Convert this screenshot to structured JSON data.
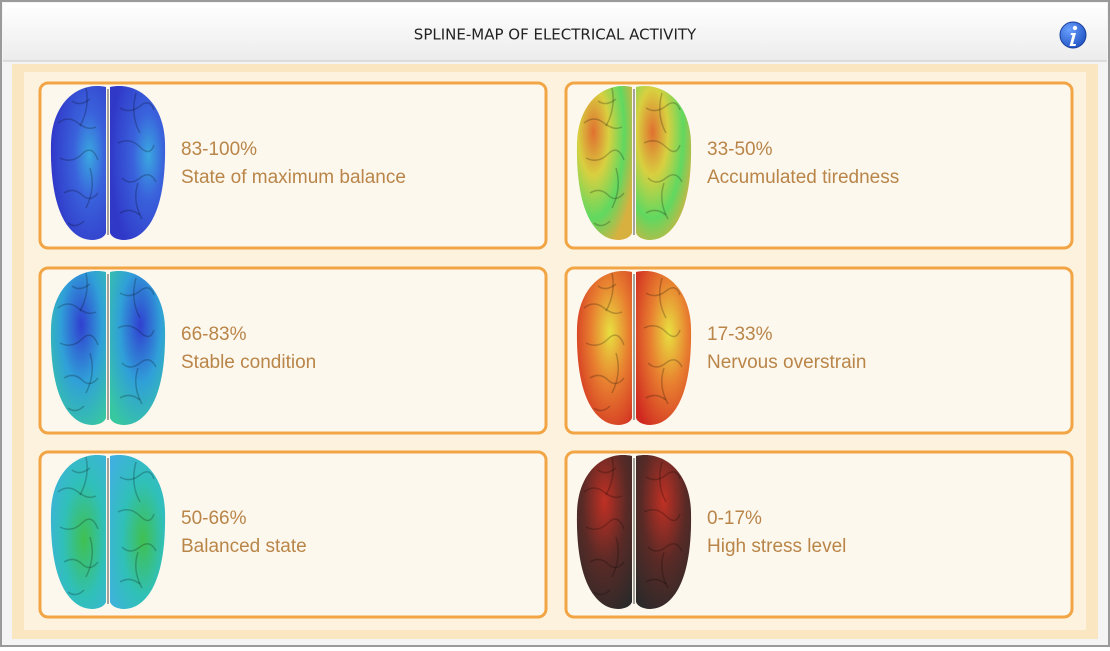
{
  "header": {
    "title": "SPLINE-MAP OF ELECTRICAL ACTIVITY"
  },
  "cards": [
    {
      "range": "83-100%",
      "label": "State of maximum balance"
    },
    {
      "range": "33-50%",
      "label": "Accumulated tiredness"
    },
    {
      "range": "66-83%",
      "label": "Stable condition"
    },
    {
      "range": "17-33%",
      "label": "Nervous overstrain"
    },
    {
      "range": "50-66%",
      "label": "Balanced state"
    },
    {
      "range": "0-17%",
      "label": "High stress level"
    }
  ]
}
